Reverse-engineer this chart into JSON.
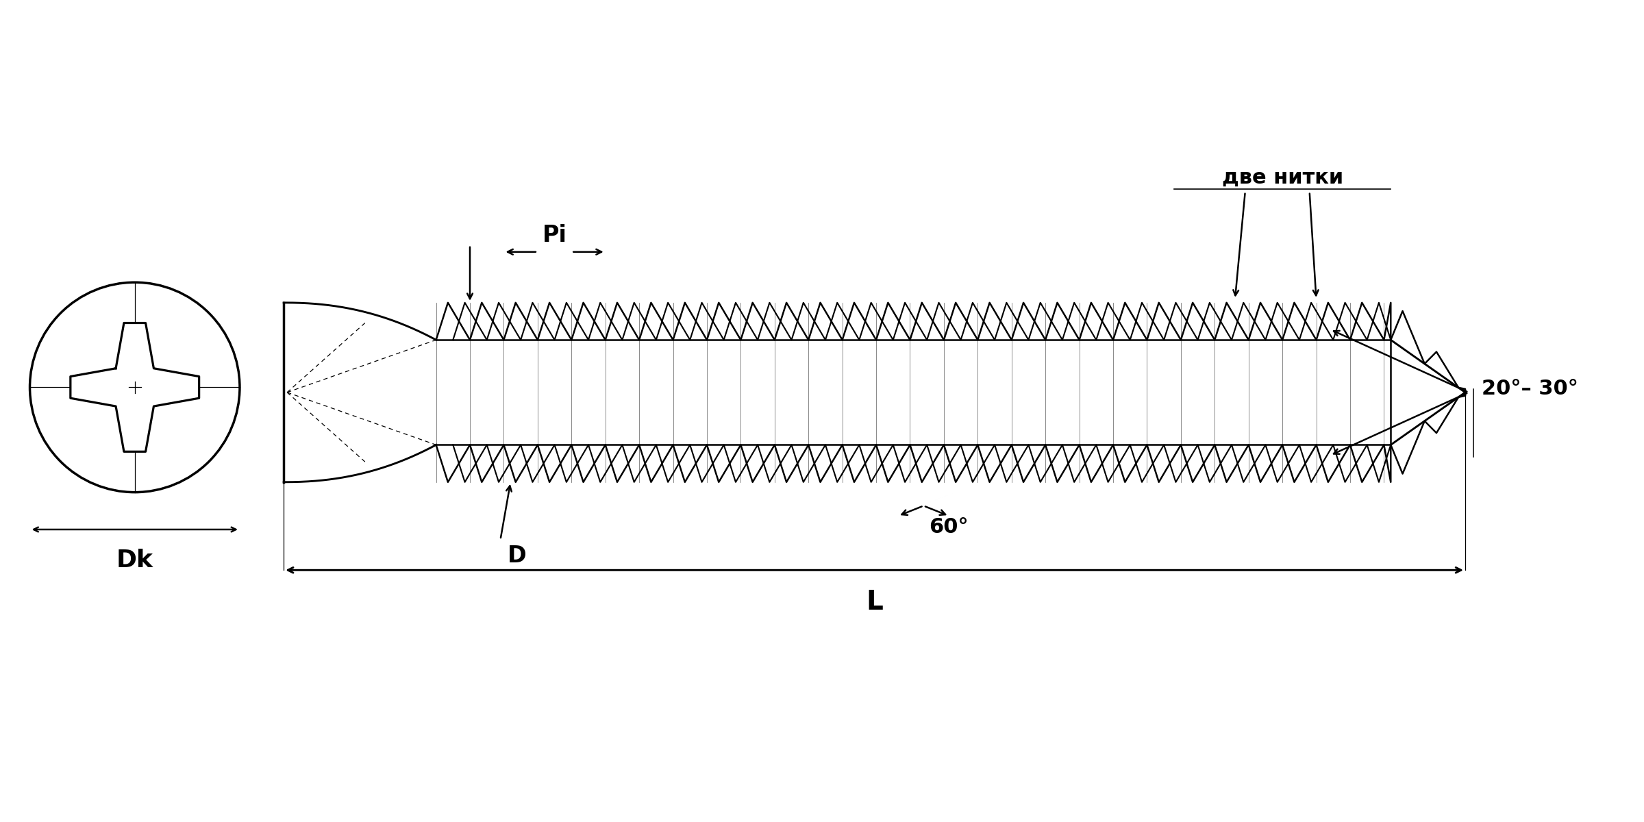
{
  "bg_color": "#ffffff",
  "line_color": "#000000",
  "lw": 1.8,
  "lw_thin": 0.9,
  "lw_thick": 2.5,
  "fs_label": 26,
  "fs_annot": 22,
  "figsize": [
    24,
    12
  ],
  "dpi": 100,
  "labels": {
    "Dk": "Dk",
    "L": "L",
    "D": "D",
    "Pi": "Pi",
    "angle_tip": "20°– 30°",
    "angle_thread": "60°",
    "two_threads": "две нитки"
  }
}
